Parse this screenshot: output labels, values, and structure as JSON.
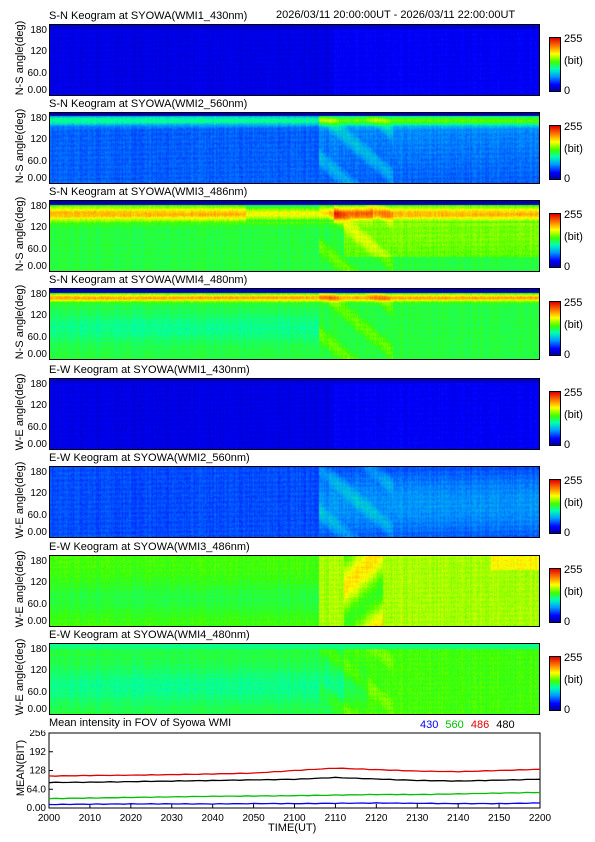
{
  "header": {
    "time_range": "2026/03/11 20:00:00UT - 2026/03/11 22:00:00UT"
  },
  "colorbar": {
    "max_label": "255",
    "unit_label": "(bit)",
    "min_label": "0"
  },
  "keogram_yticks": [
    "180",
    "120",
    "60.0",
    "0.00"
  ],
  "keograms": [
    {
      "title": "S-N Keogram at SYOWA(WMI1_430nm)",
      "ylabel": "N-S angle(deg)",
      "style": "blue"
    },
    {
      "title": "S-N Keogram at SYOWA(WMI2_560nm)",
      "ylabel": "N-S angle(deg)",
      "style": "sn560"
    },
    {
      "title": "S-N Keogram at SYOWA(WMI3_486nm)",
      "ylabel": "N-S angle(deg)",
      "style": "sn486"
    },
    {
      "title": "S-N Keogram at SYOWA(WMI4_480nm)",
      "ylabel": "N-S angle(deg)",
      "style": "sn480"
    },
    {
      "title": "E-W Keogram at SYOWA(WMI1_430nm)",
      "ylabel": "W-E angle(deg)",
      "style": "blue"
    },
    {
      "title": "E-W Keogram at SYOWA(WMI2_560nm)",
      "ylabel": "W-E angle(deg)",
      "style": "ew560"
    },
    {
      "title": "E-W Keogram at SYOWA(WMI3_486nm)",
      "ylabel": "W-E angle(deg)",
      "style": "ew486"
    },
    {
      "title": "E-W Keogram at SYOWA(WMI4_480nm)",
      "ylabel": "W-E angle(deg)",
      "style": "ew480"
    }
  ],
  "chart_data": {
    "type": "line",
    "title": "Mean intensity in FOV of Syowa WMI",
    "xlabel": "TIME(UT)",
    "ylabel": "MEAN(BIT)",
    "x_ticks": [
      "2000",
      "2010",
      "2020",
      "2030",
      "2040",
      "2050",
      "2100",
      "2110",
      "2120",
      "2130",
      "2140",
      "2150",
      "2200"
    ],
    "y_ticks": [
      "256",
      "192",
      "128",
      "64.0",
      "0.00"
    ],
    "xlim_minutes": [
      0,
      120
    ],
    "ylim": [
      0,
      256
    ],
    "x_minutes": [
      0,
      10,
      20,
      30,
      40,
      50,
      60,
      70,
      80,
      90,
      100,
      110,
      120
    ],
    "series": [
      {
        "name": "430",
        "color": "#0000ff",
        "values": [
          12,
          13,
          14,
          14,
          14,
          15,
          15,
          16,
          17,
          16,
          15,
          15,
          17
        ]
      },
      {
        "name": "560",
        "color": "#00c000",
        "values": [
          32,
          34,
          36,
          38,
          40,
          41,
          42,
          44,
          46,
          46,
          48,
          51,
          53
        ]
      },
      {
        "name": "486",
        "color": "#e00000",
        "values": [
          109,
          111,
          112,
          114,
          116,
          119,
          128,
          136,
          131,
          126,
          124,
          128,
          132
        ]
      },
      {
        "name": "480",
        "color": "#000000",
        "values": [
          87,
          88,
          90,
          92,
          94,
          96,
          98,
          104,
          99,
          94,
          92,
          95,
          98
        ]
      }
    ]
  }
}
